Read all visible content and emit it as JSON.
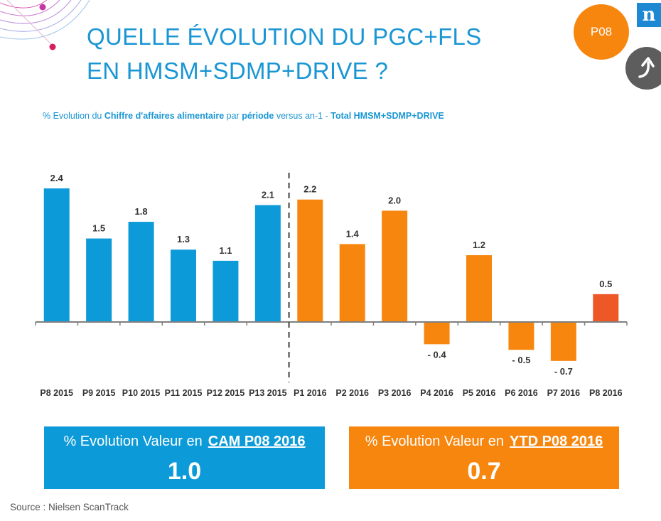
{
  "header": {
    "title_line1": "QUELLE ÉVOLUTION DU PGC+FLS",
    "title_line2": "EN HMSM+SDMP+DRIVE ?",
    "badge": "P08",
    "logo": "n"
  },
  "subtitle": {
    "part1": "% Evolution du ",
    "part2": "Chiffre d'affaires alimentaire",
    "part3": " par ",
    "part4": "période",
    "part5": " versus an-1 - ",
    "part6": "Total HMSM+SDMP+DRIVE"
  },
  "chart_data": {
    "type": "bar",
    "categories": [
      "P8 2015",
      "P9 2015",
      "P10 2015",
      "P11 2015",
      "P12 2015",
      "P13 2015",
      "P1 2016",
      "P2 2016",
      "P3 2016",
      "P4 2016",
      "P5 2016",
      "P6 2016",
      "P7 2016",
      "P8 2016"
    ],
    "values": [
      2.4,
      1.5,
      1.8,
      1.3,
      1.1,
      2.1,
      2.2,
      1.4,
      2.0,
      -0.4,
      1.2,
      -0.5,
      -0.7,
      0.5
    ],
    "value_labels": [
      "2.4",
      "1.5",
      "1.8",
      "1.3",
      "1.1",
      "2.1",
      "2.2",
      "1.4",
      "2.0",
      "- 0.4",
      "1.2",
      "- 0.5",
      "- 0.7",
      "0.5"
    ],
    "colors": [
      "#0d9ad8",
      "#0d9ad8",
      "#0d9ad8",
      "#0d9ad8",
      "#0d9ad8",
      "#0d9ad8",
      "#f7860f",
      "#f7860f",
      "#f7860f",
      "#f7860f",
      "#f7860f",
      "#f7860f",
      "#f7860f",
      "#ee5826"
    ],
    "ylim": [
      -0.85,
      2.7
    ],
    "divider_after_index": 5
  },
  "summary": {
    "cam": {
      "label": "% Evolution Valeur en",
      "period": "CAM P08 2016",
      "value": "1.0"
    },
    "ytd": {
      "label": "% Evolution Valeur en",
      "period": "YTD P08 2016",
      "value": "0.7"
    }
  },
  "source": "Source : Nielsen ScanTrack",
  "colors": {
    "blue": "#0d9ad8",
    "orange": "#f7860f",
    "highlight": "#ee5826",
    "title": "#1a96d4"
  }
}
